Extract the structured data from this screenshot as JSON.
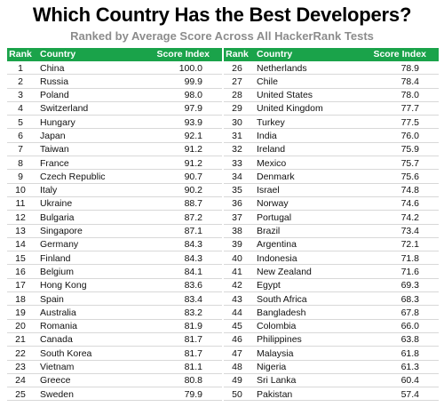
{
  "title": "Which Country Has the Best Developers?",
  "subtitle": "Ranked by Average Score Across All HackerRank Tests",
  "headers": {
    "rank": "Rank",
    "country": "Country",
    "score": "Score Index"
  },
  "colors": {
    "header_bg": "#1aa34a",
    "header_text": "#ffffff",
    "subtitle": "#8c8c8c"
  },
  "chart_data": {
    "type": "table",
    "title": "Which Country Has the Best Developers?",
    "subtitle": "Ranked by Average Score Across All HackerRank Tests",
    "columns": [
      "Rank",
      "Country",
      "Score Index"
    ],
    "rows": [
      [
        "1",
        "China",
        "100.0"
      ],
      [
        "2",
        "Russia",
        "99.9"
      ],
      [
        "3",
        "Poland",
        "98.0"
      ],
      [
        "4",
        "Switzerland",
        "97.9"
      ],
      [
        "5",
        "Hungary",
        "93.9"
      ],
      [
        "6",
        "Japan",
        "92.1"
      ],
      [
        "7",
        "Taiwan",
        "91.2"
      ],
      [
        "8",
        "France",
        "91.2"
      ],
      [
        "9",
        "Czech Republic",
        "90.7"
      ],
      [
        "10",
        "Italy",
        "90.2"
      ],
      [
        "11",
        "Ukraine",
        "88.7"
      ],
      [
        "12",
        "Bulgaria",
        "87.2"
      ],
      [
        "13",
        "Singapore",
        "87.1"
      ],
      [
        "14",
        "Germany",
        "84.3"
      ],
      [
        "15",
        "Finland",
        "84.3"
      ],
      [
        "16",
        "Belgium",
        "84.1"
      ],
      [
        "17",
        "Hong Kong",
        "83.6"
      ],
      [
        "18",
        "Spain",
        "83.4"
      ],
      [
        "19",
        "Australia",
        "83.2"
      ],
      [
        "20",
        "Romania",
        "81.9"
      ],
      [
        "21",
        "Canada",
        "81.7"
      ],
      [
        "22",
        "South Korea",
        "81.7"
      ],
      [
        "23",
        "Vietnam",
        "81.1"
      ],
      [
        "24",
        "Greece",
        "80.8"
      ],
      [
        "25",
        "Sweden",
        "79.9"
      ],
      [
        "26",
        "Netherlands",
        "78.9"
      ],
      [
        "27",
        "Chile",
        "78.4"
      ],
      [
        "28",
        "United States",
        "78.0"
      ],
      [
        "29",
        "United Kingdom",
        "77.7"
      ],
      [
        "30",
        "Turkey",
        "77.5"
      ],
      [
        "31",
        "India",
        "76.0"
      ],
      [
        "32",
        "Ireland",
        "75.9"
      ],
      [
        "33",
        "Mexico",
        "75.7"
      ],
      [
        "34",
        "Denmark",
        "75.6"
      ],
      [
        "35",
        "Israel",
        "74.8"
      ],
      [
        "36",
        "Norway",
        "74.6"
      ],
      [
        "37",
        "Portugal",
        "74.2"
      ],
      [
        "38",
        "Brazil",
        "73.4"
      ],
      [
        "39",
        "Argentina",
        "72.1"
      ],
      [
        "40",
        "Indonesia",
        "71.8"
      ],
      [
        "41",
        "New Zealand",
        "71.6"
      ],
      [
        "42",
        "Egypt",
        "69.3"
      ],
      [
        "43",
        "South Africa",
        "68.3"
      ],
      [
        "44",
        "Bangladesh",
        "67.8"
      ],
      [
        "45",
        "Colombia",
        "66.0"
      ],
      [
        "46",
        "Philippines",
        "63.8"
      ],
      [
        "47",
        "Malaysia",
        "61.8"
      ],
      [
        "48",
        "Nigeria",
        "61.3"
      ],
      [
        "49",
        "Sri Lanka",
        "60.4"
      ],
      [
        "50",
        "Pakistan",
        "57.4"
      ]
    ]
  }
}
